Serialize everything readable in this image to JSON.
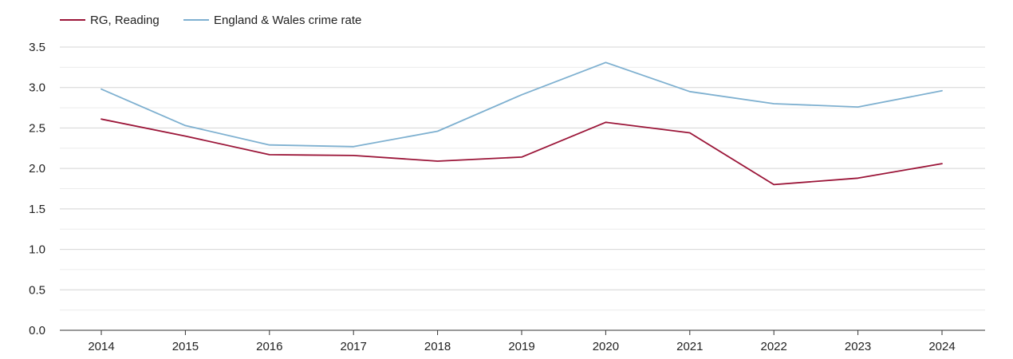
{
  "chart_data": {
    "type": "line",
    "title": "",
    "xlabel": "",
    "ylabel": "",
    "x": [
      2014,
      2015,
      2016,
      2017,
      2018,
      2019,
      2020,
      2021,
      2022,
      2023,
      2024
    ],
    "ylim": [
      0,
      3.5
    ],
    "yticks": [
      0.0,
      0.5,
      1.0,
      1.5,
      2.0,
      2.5,
      3.0,
      3.5
    ],
    "ytick_labels": [
      "0.0",
      "0.5",
      "1.0",
      "1.5",
      "2.0",
      "2.5",
      "3.0",
      "3.5"
    ],
    "grid": true,
    "legend_position": "top-left",
    "series": [
      {
        "name": "RG, Reading",
        "color": "#9b1538",
        "values": [
          2.61,
          2.4,
          2.17,
          2.16,
          2.09,
          2.14,
          2.57,
          2.44,
          1.8,
          1.88,
          2.06
        ]
      },
      {
        "name": "England & Wales crime rate",
        "color": "#7eb0d0",
        "values": [
          2.98,
          2.53,
          2.29,
          2.27,
          2.46,
          2.91,
          3.31,
          2.95,
          2.8,
          2.76,
          2.96
        ]
      }
    ]
  }
}
